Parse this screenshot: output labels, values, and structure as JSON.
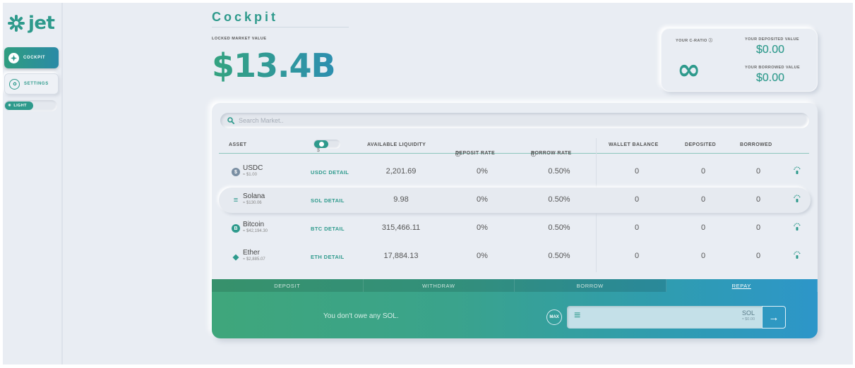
{
  "app": {
    "logo_text": "jet"
  },
  "sidebar": {
    "items": [
      {
        "label": "COCKPIT",
        "icon": "compass-icon",
        "active": true
      },
      {
        "label": "SETTINGS",
        "icon": "settings-icon",
        "active": false
      }
    ],
    "theme_toggle": {
      "label": "LIGHT"
    }
  },
  "header": {
    "title": "Cockpit",
    "locked_market_label": "LOCKED MARKET VALUE",
    "locked_market_value": "$13.4B"
  },
  "stats": {
    "c_ratio_label": "YOUR C-RATIO",
    "c_ratio_value": "∞",
    "deposited_label": "YOUR DEPOSITED VALUE",
    "deposited_value": "$0.00",
    "borrowed_label": "YOUR BORROWED VALUE",
    "borrowed_value": "$0.00"
  },
  "search": {
    "placeholder": "Search Market.."
  },
  "table": {
    "headers": {
      "asset": "ASSET",
      "available_liquidity": "AVAILABLE LIQUIDITY",
      "deposit_rate": "DEPOSIT RATE",
      "borrow_rate": "BORROW RATE",
      "wallet_balance": "WALLET BALANCE",
      "deposited": "DEPOSITED",
      "borrowed": "BORROWED"
    },
    "currency_toggle_label": "$",
    "rows": [
      {
        "name": "USDC",
        "price": "≈ $1.00",
        "detail": "USDC DETAIL",
        "liquidity": "2,201.69",
        "deposit_rate": "0%",
        "borrow_rate": "0.50%",
        "wallet": "0",
        "deposited": "0",
        "borrowed": "0",
        "color": "#7a8fa3",
        "glyph": "$"
      },
      {
        "name": "Solana",
        "price": "≈ $130.06",
        "detail": "SOL DETAIL",
        "liquidity": "9.98",
        "deposit_rate": "0%",
        "borrow_rate": "0.50%",
        "wallet": "0",
        "deposited": "0",
        "borrowed": "0",
        "color": "#2e9a8c",
        "glyph": "≡"
      },
      {
        "name": "Bitcoin",
        "price": "≈ $42,194.30",
        "detail": "BTC DETAIL",
        "liquidity": "315,466.11",
        "deposit_rate": "0%",
        "borrow_rate": "0.50%",
        "wallet": "0",
        "deposited": "0",
        "borrowed": "0",
        "color": "#2e9a8c",
        "glyph": "B"
      },
      {
        "name": "Ether",
        "price": "≈ $2,885.07",
        "detail": "ETH DETAIL",
        "liquidity": "17,884.13",
        "deposit_rate": "0%",
        "borrow_rate": "0.50%",
        "wallet": "0",
        "deposited": "0",
        "borrowed": "0",
        "color": "#2e9a8c",
        "glyph": "◆"
      }
    ]
  },
  "action_tabs": [
    {
      "label": "DEPOSIT",
      "active": false
    },
    {
      "label": "WITHDRAW",
      "active": false
    },
    {
      "label": "BORROW",
      "active": false
    },
    {
      "label": "REPAY",
      "active": true
    }
  ],
  "action": {
    "message": "You don't owe any SOL.",
    "max_label": "MAX",
    "amount_symbol": "SOL",
    "amount_usd": "≈ $0.00",
    "submit_glyph": "→"
  },
  "colors": {
    "accent": "#2e9a8c",
    "gradient_start": "#3fa67b",
    "gradient_end": "#2d96c9"
  }
}
